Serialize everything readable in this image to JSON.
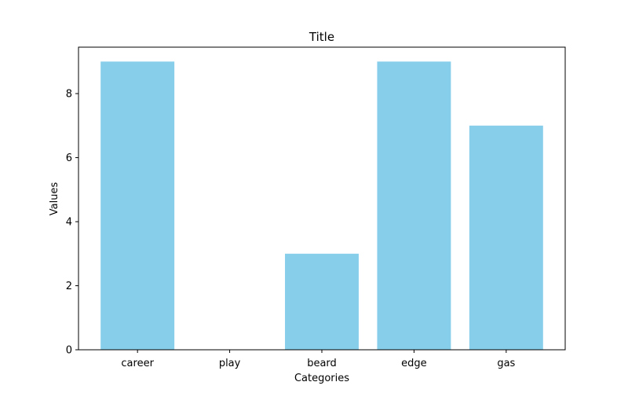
{
  "chart_data": {
    "type": "bar",
    "title": "Title",
    "xlabel": "Categories",
    "ylabel": "Values",
    "categories": [
      "career",
      "play",
      "beard",
      "edge",
      "gas"
    ],
    "values": [
      9,
      0,
      3,
      9,
      7
    ],
    "ylim": [
      0,
      9.45
    ],
    "yticks": [
      0,
      2,
      4,
      6,
      8
    ],
    "grid": false,
    "bar_color": "#87ceeb"
  }
}
